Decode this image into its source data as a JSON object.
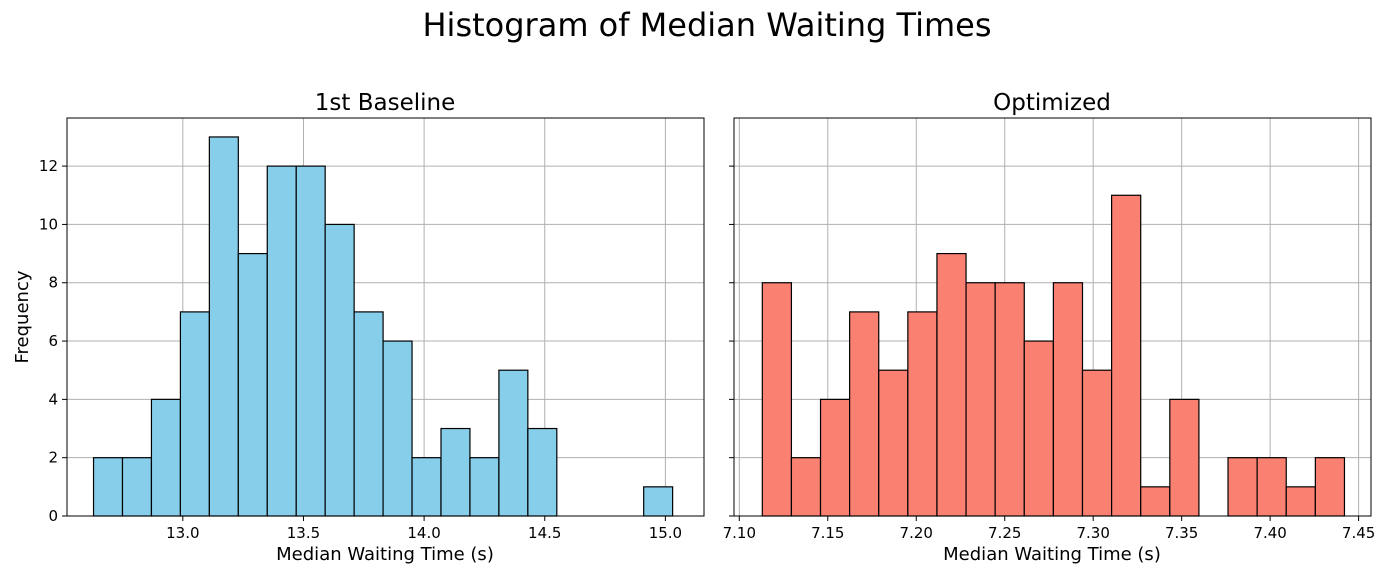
{
  "figure": {
    "title": "Histogram of Median Waiting Times"
  },
  "chart_data": [
    {
      "type": "bar",
      "subtype": "histogram",
      "title": "1st Baseline",
      "xlabel": "Median Waiting Time (s)",
      "ylabel": "Frequency",
      "color": "#87CEEB",
      "edge_color": "#000000",
      "bin_start": 12.63,
      "bin_width": 0.12,
      "counts": [
        2,
        2,
        4,
        7,
        13,
        9,
        12,
        12,
        10,
        7,
        6,
        2,
        3,
        2,
        5,
        3,
        0,
        0,
        0,
        1
      ],
      "xlim": [
        12.52,
        15.16
      ],
      "ylim": [
        0,
        13.65
      ],
      "xticks": [
        13.0,
        13.5,
        14.0,
        14.5,
        15.0
      ],
      "xtick_labels": [
        "13.0",
        "13.5",
        "14.0",
        "14.5",
        "15.0"
      ],
      "yticks": [
        0,
        2,
        4,
        6,
        8,
        10,
        12
      ],
      "ytick_labels": [
        "0",
        "2",
        "4",
        "6",
        "8",
        "10",
        "12"
      ],
      "grid": true
    },
    {
      "type": "bar",
      "subtype": "histogram",
      "title": "Optimized",
      "xlabel": "Median Waiting Time (s)",
      "ylabel": "",
      "color": "#FA8072",
      "edge_color": "#000000",
      "bin_start": 7.113,
      "bin_width": 0.01645,
      "counts": [
        8,
        2,
        4,
        7,
        5,
        7,
        9,
        8,
        8,
        6,
        8,
        5,
        11,
        1,
        4,
        0,
        2,
        2,
        1,
        2
      ],
      "xlim": [
        7.097,
        7.457
      ],
      "ylim": [
        0,
        13.65
      ],
      "xticks": [
        7.1,
        7.15,
        7.2,
        7.25,
        7.3,
        7.35,
        7.4,
        7.45
      ],
      "xtick_labels": [
        "7.10",
        "7.15",
        "7.20",
        "7.25",
        "7.30",
        "7.35",
        "7.40",
        "7.45"
      ],
      "yticks": [
        0,
        2,
        4,
        6,
        8,
        10,
        12
      ],
      "ytick_labels": [],
      "grid": true
    }
  ]
}
